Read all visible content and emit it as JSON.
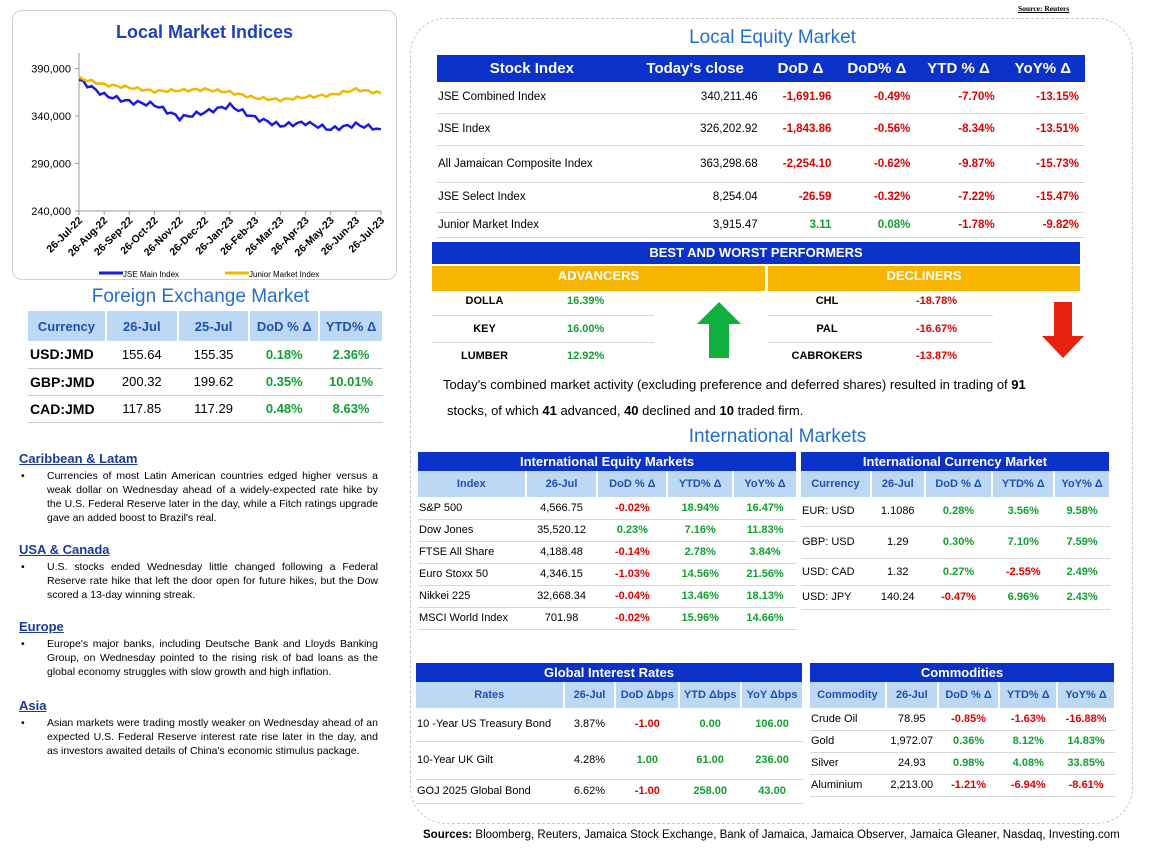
{
  "source_top": "Source: Reuters",
  "indices_chart": {
    "title": "Local Market Indices",
    "chart_data": {
      "type": "line",
      "title": "Local Market Indices",
      "ylim": [
        240000,
        400000
      ],
      "y_ticks": [
        "390,000",
        "340,000",
        "290,000",
        "240,000"
      ],
      "x_ticks": [
        "26-Jul-22",
        "26-Aug-22",
        "26-Sep-22",
        "26-Oct-22",
        "26-Nov-22",
        "26-Dec-22",
        "26-Jan-23",
        "26-Feb-23",
        "26-Mar-23",
        "26-Apr-23",
        "26-May-23",
        "26-Jun-23",
        "26-Jul-23"
      ],
      "series": [
        {
          "name": "JSE Main Index",
          "color": "#1a1ae0",
          "values": [
            378000,
            362000,
            355000,
            352000,
            338000,
            344000,
            351000,
            338000,
            330000,
            333000,
            326000,
            331000,
            326000
          ]
        },
        {
          "name": "Junior Market Index",
          "color": "#f0b800",
          "values": [
            380000,
            373000,
            370000,
            366000,
            367000,
            368000,
            365000,
            359000,
            357000,
            360000,
            362000,
            368000,
            364000
          ]
        }
      ],
      "grid": false,
      "legend": "bottom"
    }
  },
  "fx": {
    "title": "Foreign Exchange Market",
    "headers": [
      "Currency",
      "26-Jul",
      "25-Jul",
      "DoD % Δ",
      "YTD% Δ"
    ],
    "rows": [
      [
        "USD:JMD",
        "155.64",
        "155.35",
        "0.18%",
        "2.36%"
      ],
      [
        "GBP:JMD",
        "200.32",
        "199.62",
        "0.35%",
        "10.01%"
      ],
      [
        "CAD:JMD",
        "117.85",
        "117.29",
        "0.48%",
        "8.63%"
      ]
    ]
  },
  "news": [
    {
      "heading": "Caribbean & Latam",
      "text": "Currencies of most Latin American countries edged higher versus a weak dollar on Wednesday ahead of a widely-expected rate hike by the U.S. Federal Reserve later in the day, while a Fitch ratings upgrade gave an added boost to Brazil's real."
    },
    {
      "heading": "USA & Canada",
      "text": "U.S. stocks ended Wednesday little changed following a Federal Reserve rate hike that left the door open for future hikes, but the Dow scored a 13-day winning streak."
    },
    {
      "heading": "Europe",
      "text": "Europe's major banks, including Deutsche Bank and Lloyds Banking Group, on Wednesday pointed to the rising risk of bad loans as the global economy struggles with slow growth and high inflation."
    },
    {
      "heading": "Asia",
      "text": "Asian markets were trading mostly weaker on Wednesday ahead of an expected U.S. Federal Reserve interest rate rise later in the day, and as investors awaited details of China's economic stimulus package."
    }
  ],
  "equity": {
    "title": "Local Equity Market",
    "headers": [
      "Stock Index",
      "Today's close",
      "DoD  Δ",
      "DoD% Δ",
      "YTD % Δ",
      "YoY% Δ"
    ],
    "rows": [
      [
        "JSE Combined Index",
        "340,211.46",
        "-1,691.96",
        "-0.49%",
        "-7.70%",
        "-13.15%"
      ],
      [
        "JSE Index",
        "326,202.92",
        "-1,843.86",
        "-0.56%",
        "-8.34%",
        "-13.51%"
      ],
      [
        "All Jamaican Composite Index",
        "363,298.68",
        "-2,254.10",
        "-0.62%",
        "-9.87%",
        "-15.73%"
      ],
      [
        "JSE Select Index",
        "8,254.04",
        "-26.59",
        "-0.32%",
        "-7.22%",
        "-15.47%"
      ],
      [
        "Junior Market Index",
        "3,915.47",
        "3.11",
        "0.08%",
        "-1.78%",
        "-9.82%"
      ]
    ]
  },
  "performers": {
    "title": "BEST AND WORST PERFORMERS",
    "advancers_label": "ADVANCERS",
    "decliners_label": "DECLINERS",
    "advancers": [
      [
        "DOLLA",
        "16.39%"
      ],
      [
        "KEY",
        "16.00%"
      ],
      [
        "LUMBER",
        "12.92%"
      ]
    ],
    "decliners": [
      [
        "CHL",
        "-18.78%"
      ],
      [
        "PAL",
        "-16.67%"
      ],
      [
        "CABROKERS",
        "-13.87%"
      ]
    ]
  },
  "summary": {
    "prefix": "Today's combined market activity (excluding preference and deferred shares) resulted in trading of ",
    "traded": "91",
    "mid1": " stocks, of which ",
    "advanced": "41",
    "mid2": " advanced, ",
    "declined": "40",
    "mid3": " declined and ",
    "firm": "10",
    "suffix": " traded firm."
  },
  "intl_title": "International Markets",
  "intl_equity": {
    "title": "International Equity Markets",
    "headers": [
      "Index",
      "26-Jul",
      "DoD % Δ",
      "YTD% Δ",
      "YoY% Δ"
    ],
    "rows": [
      [
        "S&P 500",
        "4,566.75",
        "-0.02%",
        "18.94%",
        "16.47%"
      ],
      [
        "Dow Jones",
        "35,520.12",
        "0.23%",
        "7.16%",
        "11.83%"
      ],
      [
        "FTSE All Share",
        "4,188.48",
        "-0.14%",
        "2.78%",
        "3.84%"
      ],
      [
        "Euro Stoxx 50",
        "4,346.15",
        "-1.03%",
        "14.56%",
        "21.56%"
      ],
      [
        "Nikkei 225",
        "32,668.34",
        "-0.04%",
        "13.46%",
        "18.13%"
      ],
      [
        "MSCI World Index",
        "701.98",
        "-0.02%",
        "15.96%",
        "14.66%"
      ]
    ]
  },
  "intl_currency": {
    "title": "International Currency Market",
    "headers": [
      "Currency",
      "26-Jul",
      "DoD % Δ",
      "YTD% Δ",
      "YoY% Δ"
    ],
    "rows": [
      [
        "EUR: USD",
        "1.1086",
        "0.28%",
        "3.56%",
        "9.58%"
      ],
      [
        "GBP: USD",
        "1.29",
        "0.30%",
        "7.10%",
        "7.59%"
      ],
      [
        "USD: CAD",
        "1.32",
        "0.27%",
        "-2.55%",
        "2.49%"
      ],
      [
        "USD: JPY",
        "140.24",
        "-0.47%",
        "6.96%",
        "2.43%"
      ]
    ]
  },
  "rates": {
    "title": "Global Interest Rates",
    "headers": [
      "Rates",
      "26-Jul",
      "DoD Δbps",
      "YTD Δbps",
      "YoY Δbps"
    ],
    "rows": [
      [
        "10 -Year US Treasury Bond",
        "3.87%",
        "-1.00",
        "0.00",
        "106.00"
      ],
      [
        "10-Year UK Gilt",
        "4.28%",
        "1.00",
        "61.00",
        "236.00"
      ],
      [
        "GOJ 2025 Global Bond",
        "6.62%",
        "-1.00",
        "258.00",
        "43.00"
      ]
    ]
  },
  "commodities": {
    "title": "Commodities",
    "headers": [
      "Commodity",
      "26-Jul",
      "DoD % Δ",
      "YTD% Δ",
      "YoY% Δ"
    ],
    "rows": [
      [
        "Crude Oil",
        "78.95",
        "-0.85%",
        "-1.63%",
        "-16.88%"
      ],
      [
        "Gold",
        "1,972.07",
        "0.36%",
        "8.12%",
        "14.83%"
      ],
      [
        "Silver",
        "24.93",
        "0.98%",
        "4.08%",
        "33.85%"
      ],
      [
        "Aluminium",
        "2,213.00",
        "-1.21%",
        "-6.94%",
        "-8.61%"
      ]
    ]
  },
  "sources": {
    "label": "Sources:",
    "text": " Bloomberg, Reuters, Jamaica Stock Exchange, Bank of Jamaica, Jamaica Observer, Jamaica Gleaner, Nasdaq, Investing.com"
  },
  "colors": {
    "up": "#10a030",
    "down": "#e00000",
    "header_blue": "#0a32c8",
    "header_light": "#bcd8f5",
    "gold": "#f7b500"
  }
}
